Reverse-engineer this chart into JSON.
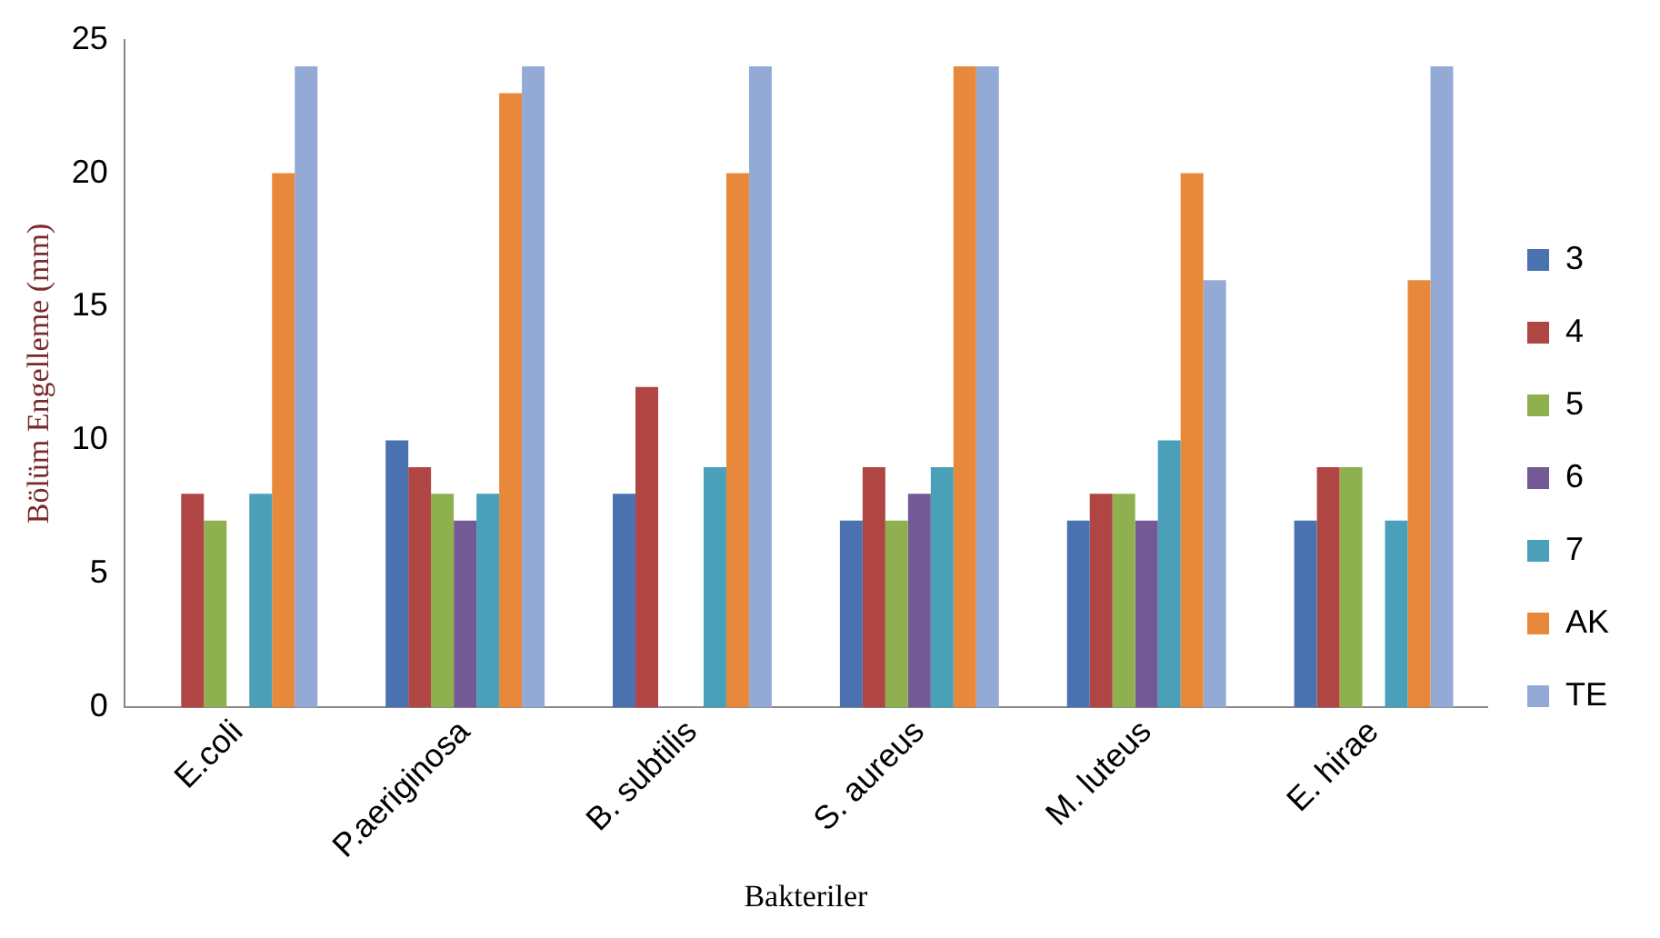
{
  "chart_data": {
    "type": "bar",
    "xlabel": "Bakteriler",
    "ylabel": "Bölüm Engelleme (mm)",
    "categories": [
      "E.coli",
      "P.aeriginosa",
      "B. subtilis",
      "S. aureus",
      "M. luteus",
      "E. hirae"
    ],
    "series": [
      {
        "name": "3",
        "color": "#4a72b0",
        "values": [
          null,
          10,
          8,
          7,
          7,
          7
        ]
      },
      {
        "name": "4",
        "color": "#b04644",
        "values": [
          8,
          9,
          12,
          9,
          8,
          9
        ]
      },
      {
        "name": "5",
        "color": "#8fb04e",
        "values": [
          7,
          8,
          null,
          7,
          8,
          9
        ]
      },
      {
        "name": "6",
        "color": "#735a96",
        "values": [
          null,
          7,
          null,
          8,
          7,
          null
        ]
      },
      {
        "name": "7",
        "color": "#4aa0b8",
        "values": [
          8,
          8,
          9,
          9,
          10,
          7
        ]
      },
      {
        "name": "AK",
        "color": "#e8883a",
        "values": [
          20,
          23,
          20,
          24,
          20,
          16
        ]
      },
      {
        "name": "TE",
        "color": "#94aad6",
        "values": [
          24,
          24,
          24,
          24,
          16,
          24
        ]
      }
    ],
    "ylim": [
      0,
      25
    ],
    "yticks": [
      0,
      5,
      10,
      15,
      20,
      25
    ],
    "grid": false,
    "legend": "right"
  }
}
